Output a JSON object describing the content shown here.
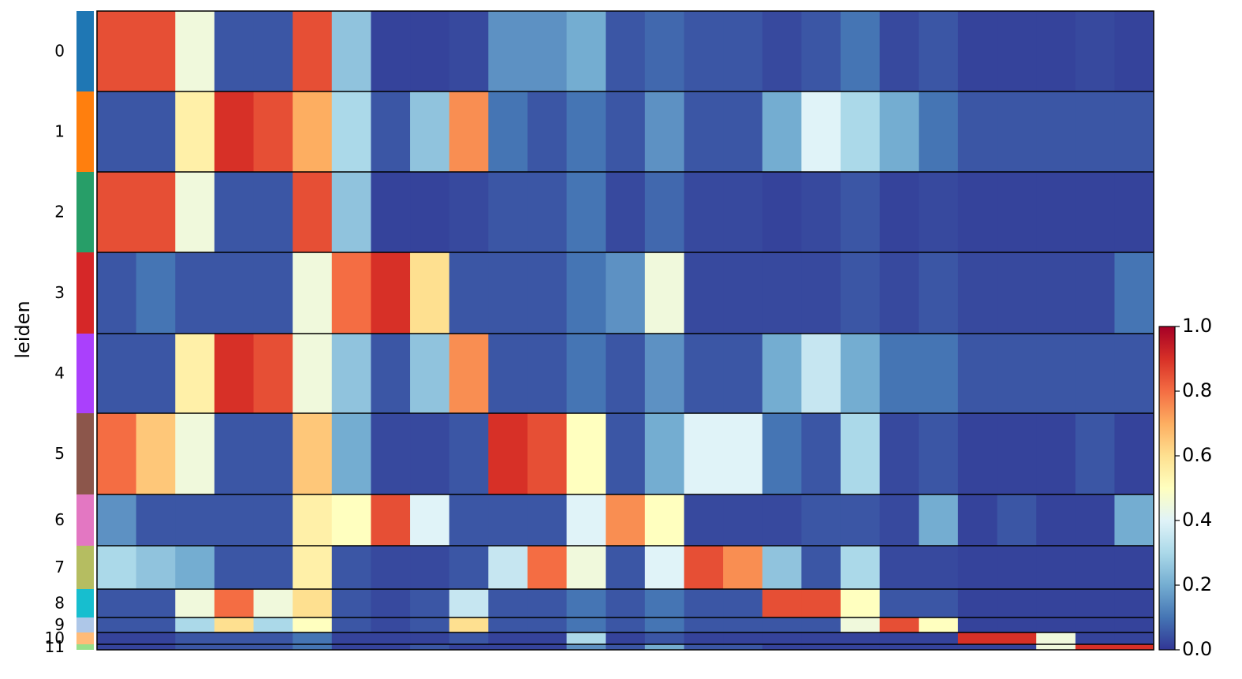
{
  "chart_data": {
    "type": "heatmap",
    "ylabel": "leiden",
    "row_labels": [
      "0",
      "1",
      "2",
      "3",
      "4",
      "5",
      "6",
      "7",
      "8",
      "9",
      "10",
      "11"
    ],
    "row_colors": [
      "#1f77b4",
      "#ff7f0e",
      "#279e68",
      "#d62728",
      "#aa40fc",
      "#8c564b",
      "#e377c2",
      "#b5bd61",
      "#17becf",
      "#aec7e8",
      "#ffbb78",
      "#98df8a"
    ],
    "columns": [
      null,
      null,
      null,
      null,
      null,
      null,
      null,
      null,
      null,
      null,
      null,
      null,
      null,
      null,
      null,
      null,
      null,
      null,
      null,
      null,
      null,
      null,
      null,
      null,
      null,
      null,
      null
    ],
    "values": [
      [
        0.85,
        0.85,
        0.45,
        0.05,
        0.05,
        0.85,
        0.25,
        0.02,
        0.02,
        0.03,
        0.15,
        0.15,
        0.2,
        0.05,
        0.08,
        0.05,
        0.05,
        0.03,
        0.05,
        0.1,
        0.03,
        0.05,
        0.02,
        0.02,
        0.02,
        0.03,
        0.02
      ],
      [
        0.05,
        0.05,
        0.55,
        0.9,
        0.85,
        0.7,
        0.3,
        0.05,
        0.25,
        0.75,
        0.1,
        0.05,
        0.1,
        0.05,
        0.15,
        0.05,
        0.05,
        0.2,
        0.4,
        0.3,
        0.2,
        0.1,
        0.05,
        0.05,
        0.05,
        0.05,
        0.05
      ],
      [
        0.85,
        0.85,
        0.45,
        0.05,
        0.05,
        0.85,
        0.25,
        0.02,
        0.02,
        0.03,
        0.05,
        0.05,
        0.1,
        0.03,
        0.08,
        0.03,
        0.03,
        0.02,
        0.03,
        0.05,
        0.02,
        0.03,
        0.02,
        0.02,
        0.02,
        0.02,
        0.02
      ],
      [
        0.05,
        0.1,
        0.05,
        0.05,
        0.05,
        0.45,
        0.8,
        0.9,
        0.6,
        0.05,
        0.05,
        0.05,
        0.1,
        0.15,
        0.45,
        0.03,
        0.03,
        0.03,
        0.03,
        0.05,
        0.03,
        0.05,
        0.03,
        0.03,
        0.03,
        0.03,
        0.1
      ],
      [
        0.05,
        0.05,
        0.55,
        0.9,
        0.85,
        0.45,
        0.25,
        0.05,
        0.25,
        0.75,
        0.05,
        0.05,
        0.1,
        0.05,
        0.15,
        0.05,
        0.05,
        0.2,
        0.35,
        0.2,
        0.1,
        0.1,
        0.05,
        0.05,
        0.05,
        0.05,
        0.05
      ],
      [
        0.8,
        0.65,
        0.45,
        0.05,
        0.05,
        0.65,
        0.2,
        0.03,
        0.03,
        0.05,
        0.9,
        0.85,
        0.5,
        0.05,
        0.2,
        0.4,
        0.4,
        0.1,
        0.05,
        0.3,
        0.03,
        0.05,
        0.02,
        0.02,
        0.02,
        0.05,
        0.02
      ],
      [
        0.15,
        0.05,
        0.05,
        0.05,
        0.05,
        0.55,
        0.5,
        0.85,
        0.4,
        0.05,
        0.05,
        0.05,
        0.4,
        0.75,
        0.5,
        0.03,
        0.03,
        0.03,
        0.05,
        0.05,
        0.03,
        0.2,
        0.02,
        0.05,
        0.02,
        0.02,
        0.2
      ],
      [
        0.3,
        0.25,
        0.2,
        0.05,
        0.05,
        0.55,
        0.05,
        0.03,
        0.03,
        0.05,
        0.35,
        0.8,
        0.45,
        0.05,
        0.4,
        0.85,
        0.75,
        0.25,
        0.05,
        0.3,
        0.03,
        0.03,
        0.02,
        0.02,
        0.02,
        0.02,
        0.02
      ],
      [
        0.05,
        0.05,
        0.45,
        0.8,
        0.45,
        0.6,
        0.05,
        0.03,
        0.05,
        0.35,
        0.05,
        0.05,
        0.1,
        0.05,
        0.1,
        0.05,
        0.05,
        0.85,
        0.85,
        0.5,
        0.05,
        0.05,
        0.02,
        0.02,
        0.02,
        0.02,
        0.02
      ],
      [
        0.05,
        0.05,
        0.3,
        0.6,
        0.3,
        0.5,
        0.05,
        0.03,
        0.05,
        0.6,
        0.05,
        0.05,
        0.1,
        0.05,
        0.1,
        0.05,
        0.05,
        0.05,
        0.05,
        0.45,
        0.85,
        0.5,
        0.02,
        0.02,
        0.02,
        0.02,
        0.02
      ],
      [
        0.02,
        0.02,
        0.05,
        0.05,
        0.05,
        0.1,
        0.02,
        0.02,
        0.02,
        0.05,
        0.02,
        0.02,
        0.3,
        0.02,
        0.05,
        0.02,
        0.02,
        0.02,
        0.02,
        0.02,
        0.02,
        0.02,
        0.9,
        0.9,
        0.45,
        0.02,
        0.02
      ],
      [
        0.02,
        0.02,
        0.05,
        0.05,
        0.05,
        0.1,
        0.02,
        0.02,
        0.05,
        0.02,
        0.02,
        0.02,
        0.15,
        0.05,
        0.2,
        0.05,
        0.05,
        0.02,
        0.02,
        0.02,
        0.02,
        0.02,
        0.02,
        0.02,
        0.45,
        0.9,
        0.9
      ]
    ],
    "colormap": "RdYlBu_r",
    "zlim": [
      0,
      1
    ],
    "zticks": [
      {
        "value": 0,
        "label": "0.0"
      },
      {
        "value": 0.2,
        "label": "0.2"
      },
      {
        "value": 0.4,
        "label": "0.4"
      },
      {
        "value": 0.6,
        "label": "0.6"
      },
      {
        "value": 0.8,
        "label": "0.8"
      },
      {
        "value": 1,
        "label": "1.0"
      }
    ]
  }
}
